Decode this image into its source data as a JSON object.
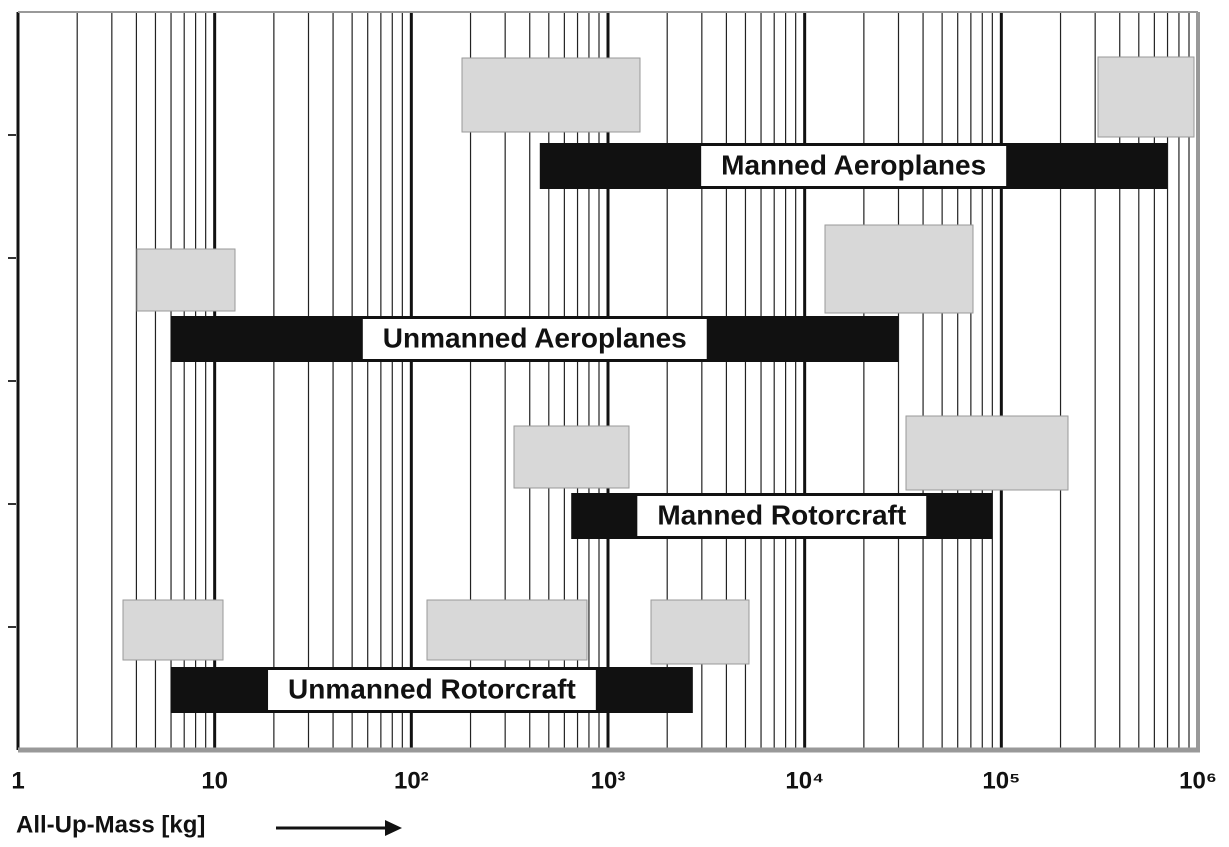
{
  "chart_data": {
    "type": "range-bar",
    "x_label": "All-Up-Mass [kg]",
    "xlim": [
      1,
      1000000
    ],
    "log_x": true,
    "grid": true,
    "minor_grid": true,
    "xticks": [
      1,
      10,
      {
        "value": 100,
        "label": "10²"
      },
      {
        "value": 1000,
        "label": "10³"
      },
      {
        "value": 10000,
        "label": "10⁴"
      },
      {
        "value": 100000,
        "label": "10⁵"
      },
      {
        "value": 1000000,
        "label": "10⁶"
      }
    ],
    "bar_color": "#111111",
    "bars": [
      {
        "label": "Manned Aeroplanes",
        "start": 450,
        "end": 700000
      },
      {
        "label": "Unmanned Aeroplanes",
        "start": 6,
        "end": 30000
      },
      {
        "label": "Manned Rotorcraft",
        "start": 650,
        "end": 90000
      },
      {
        "label": "Unmanned Rotorcraft",
        "start": 6,
        "end": 2700
      }
    ]
  }
}
